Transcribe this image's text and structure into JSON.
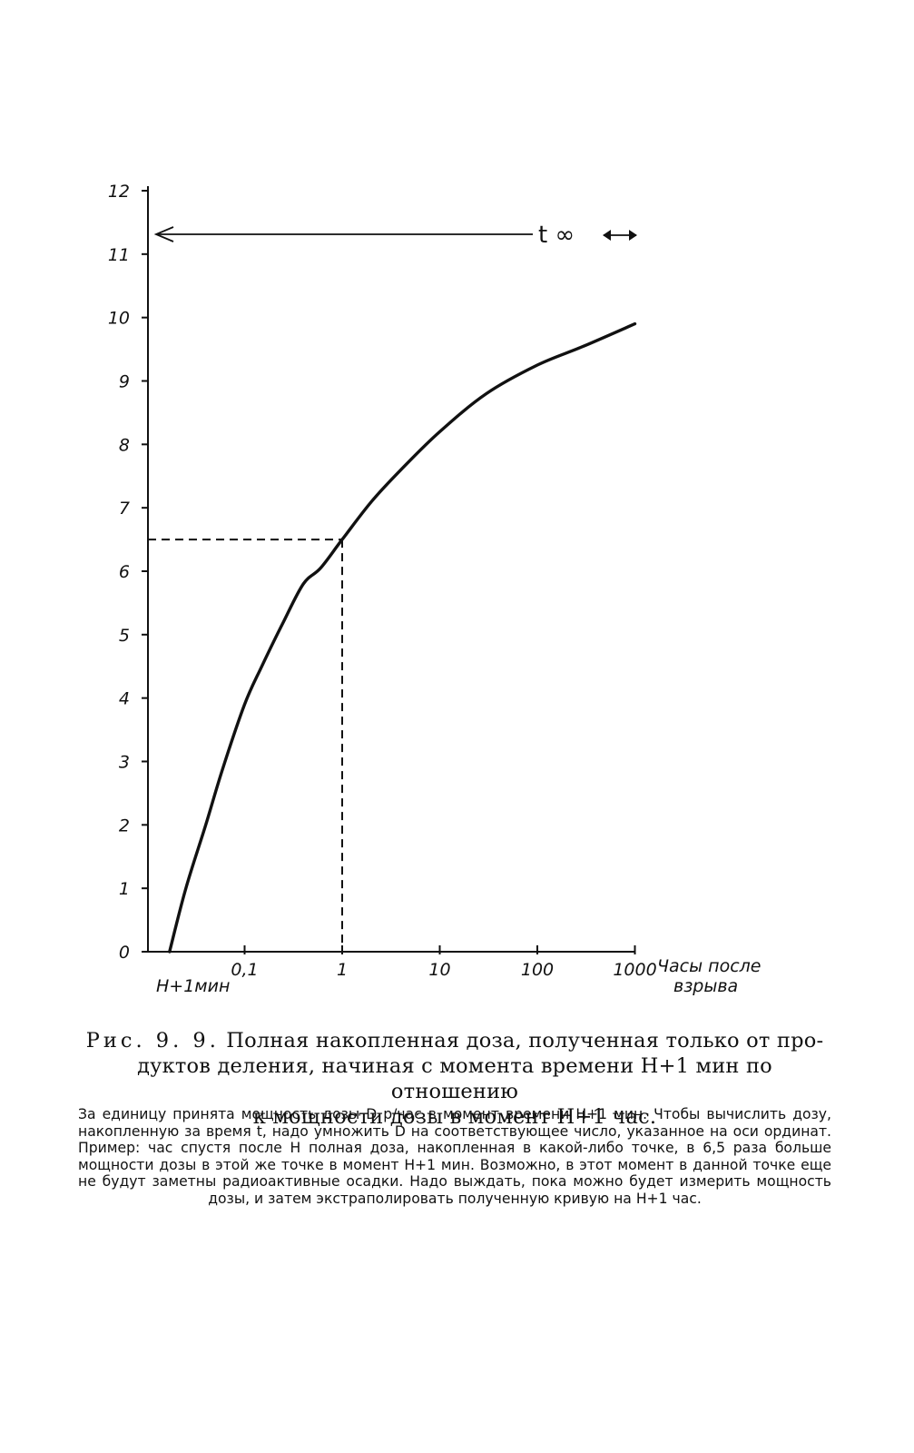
{
  "chart_data": {
    "type": "line",
    "x_scale": "log",
    "xlim": [
      0.01,
      1000
    ],
    "ylim": [
      0,
      12
    ],
    "y_ticks": [
      "0",
      "1",
      "2",
      "3",
      "4",
      "5",
      "6",
      "7",
      "8",
      "9",
      "10",
      "11",
      "12"
    ],
    "x_ticks": [
      {
        "value": 0.1,
        "label": "0,1"
      },
      {
        "value": 1,
        "label": "1"
      },
      {
        "value": 10,
        "label": "10"
      },
      {
        "value": 100,
        "label": "100"
      },
      {
        "value": 1000,
        "label": "1000"
      }
    ],
    "x_origin_label": "H+1мин",
    "xlabel_line1": "Часы после",
    "xlabel_line2": "взрыва",
    "series": [
      {
        "x": [
          0.017,
          0.025,
          0.04,
          0.06,
          0.1,
          0.15,
          0.25,
          0.4,
          0.6,
          1,
          2,
          4,
          10,
          30,
          100,
          300,
          1000
        ],
        "y": [
          0.0,
          1.0,
          2.0,
          2.9,
          3.9,
          4.5,
          5.2,
          5.8,
          6.05,
          6.5,
          7.1,
          7.6,
          8.2,
          8.8,
          9.25,
          9.55,
          9.9
        ]
      }
    ],
    "reference": {
      "x": 1,
      "y": 6.5
    },
    "asymptote_label": "t ∞"
  },
  "caption": {
    "lead": "Рис. 9. 9.",
    "line1": "Полная накопленная доза, полученная только от про-",
    "line2": "дуктов деления, начиная с момента времени H+1 мин по отношению",
    "line3": "к мощности дозы в момент H+1 час."
  },
  "note": "За единицу принята мощность дозы D р/час в момент времени H+1 мин. Чтобы вычислить дозу, накопленную за время t, надо умножить D на соответствующее число, указанное на оси ординат. Пример: час спустя после H полная доза, накопленная в какой-либо точке, в 6,5 раза больше мощности дозы в этой же точке в момент H+1 мин. Возможно, в этот момент в данной точке еще не будут заметны радиоактивные осадки. Надо выждать, пока можно будет измерить мощность дозы, и затем экстраполировать полученную кривую на H+1 час."
}
